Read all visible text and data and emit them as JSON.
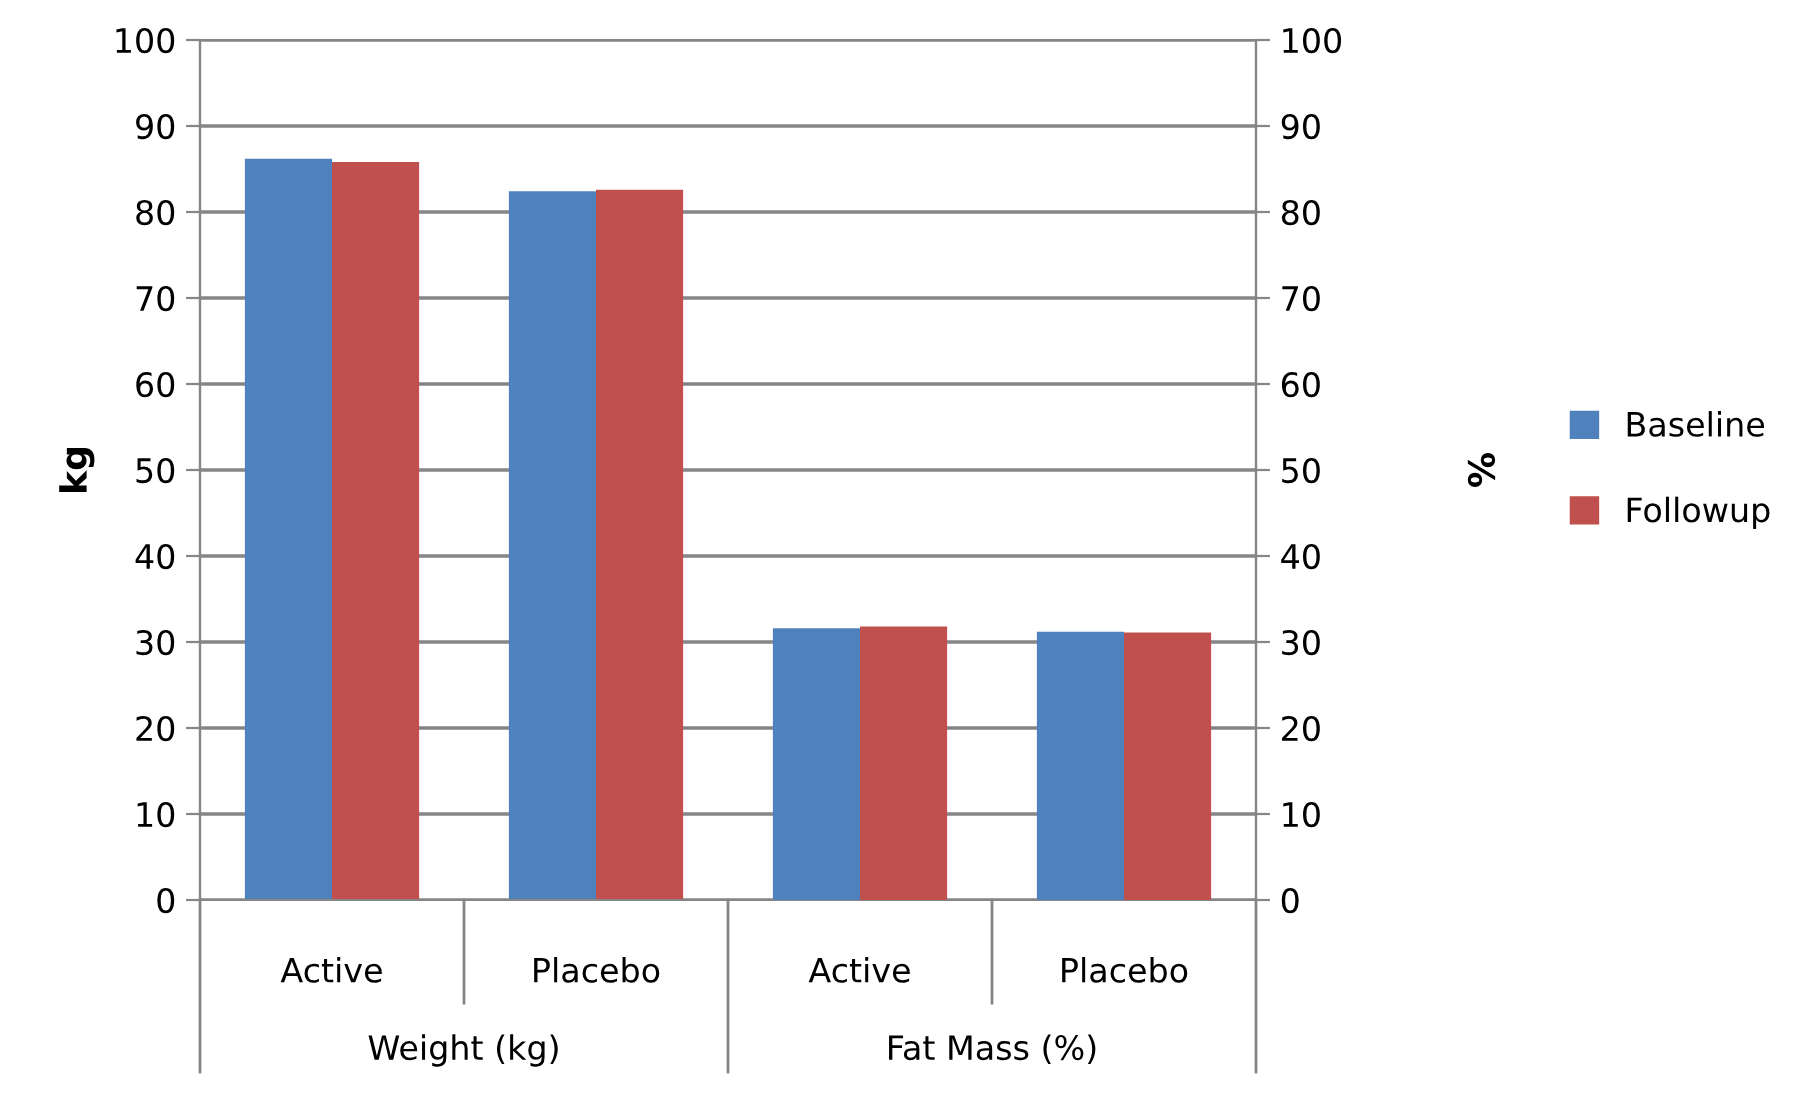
{
  "chart_data": {
    "type": "bar",
    "categories": [
      "Active",
      "Placebo",
      "Active",
      "Placebo"
    ],
    "annotations": [
      "Weight (kg)",
      "Fat Mass (%)"
    ],
    "ylabel": "kg",
    "y2label": "%",
    "ylim": [
      0,
      100
    ],
    "yticks": [
      0,
      10,
      20,
      30,
      40,
      50,
      60,
      70,
      80,
      90,
      100
    ],
    "y2lim": [
      0,
      100
    ],
    "y2ticks": [
      0,
      10,
      20,
      30,
      40,
      50,
      60,
      70,
      80,
      90,
      100
    ],
    "grid": "y",
    "legend": "right",
    "series": [
      {
        "name": "Baseline",
        "color": "#4f81bd",
        "values": [
          86.2,
          82.4,
          null,
          null
        ]
      },
      {
        "name": "Followup",
        "color": "#c0504d",
        "values": [
          85.8,
          82.6,
          null,
          null
        ]
      },
      {
        "color": "#4f81bd",
        "axis": "y2",
        "values": [
          null,
          null,
          31.6,
          31.2
        ]
      },
      {
        "color": "#c0504d",
        "axis": "y2",
        "values": [
          null,
          null,
          31.8,
          31.1
        ]
      }
    ]
  }
}
